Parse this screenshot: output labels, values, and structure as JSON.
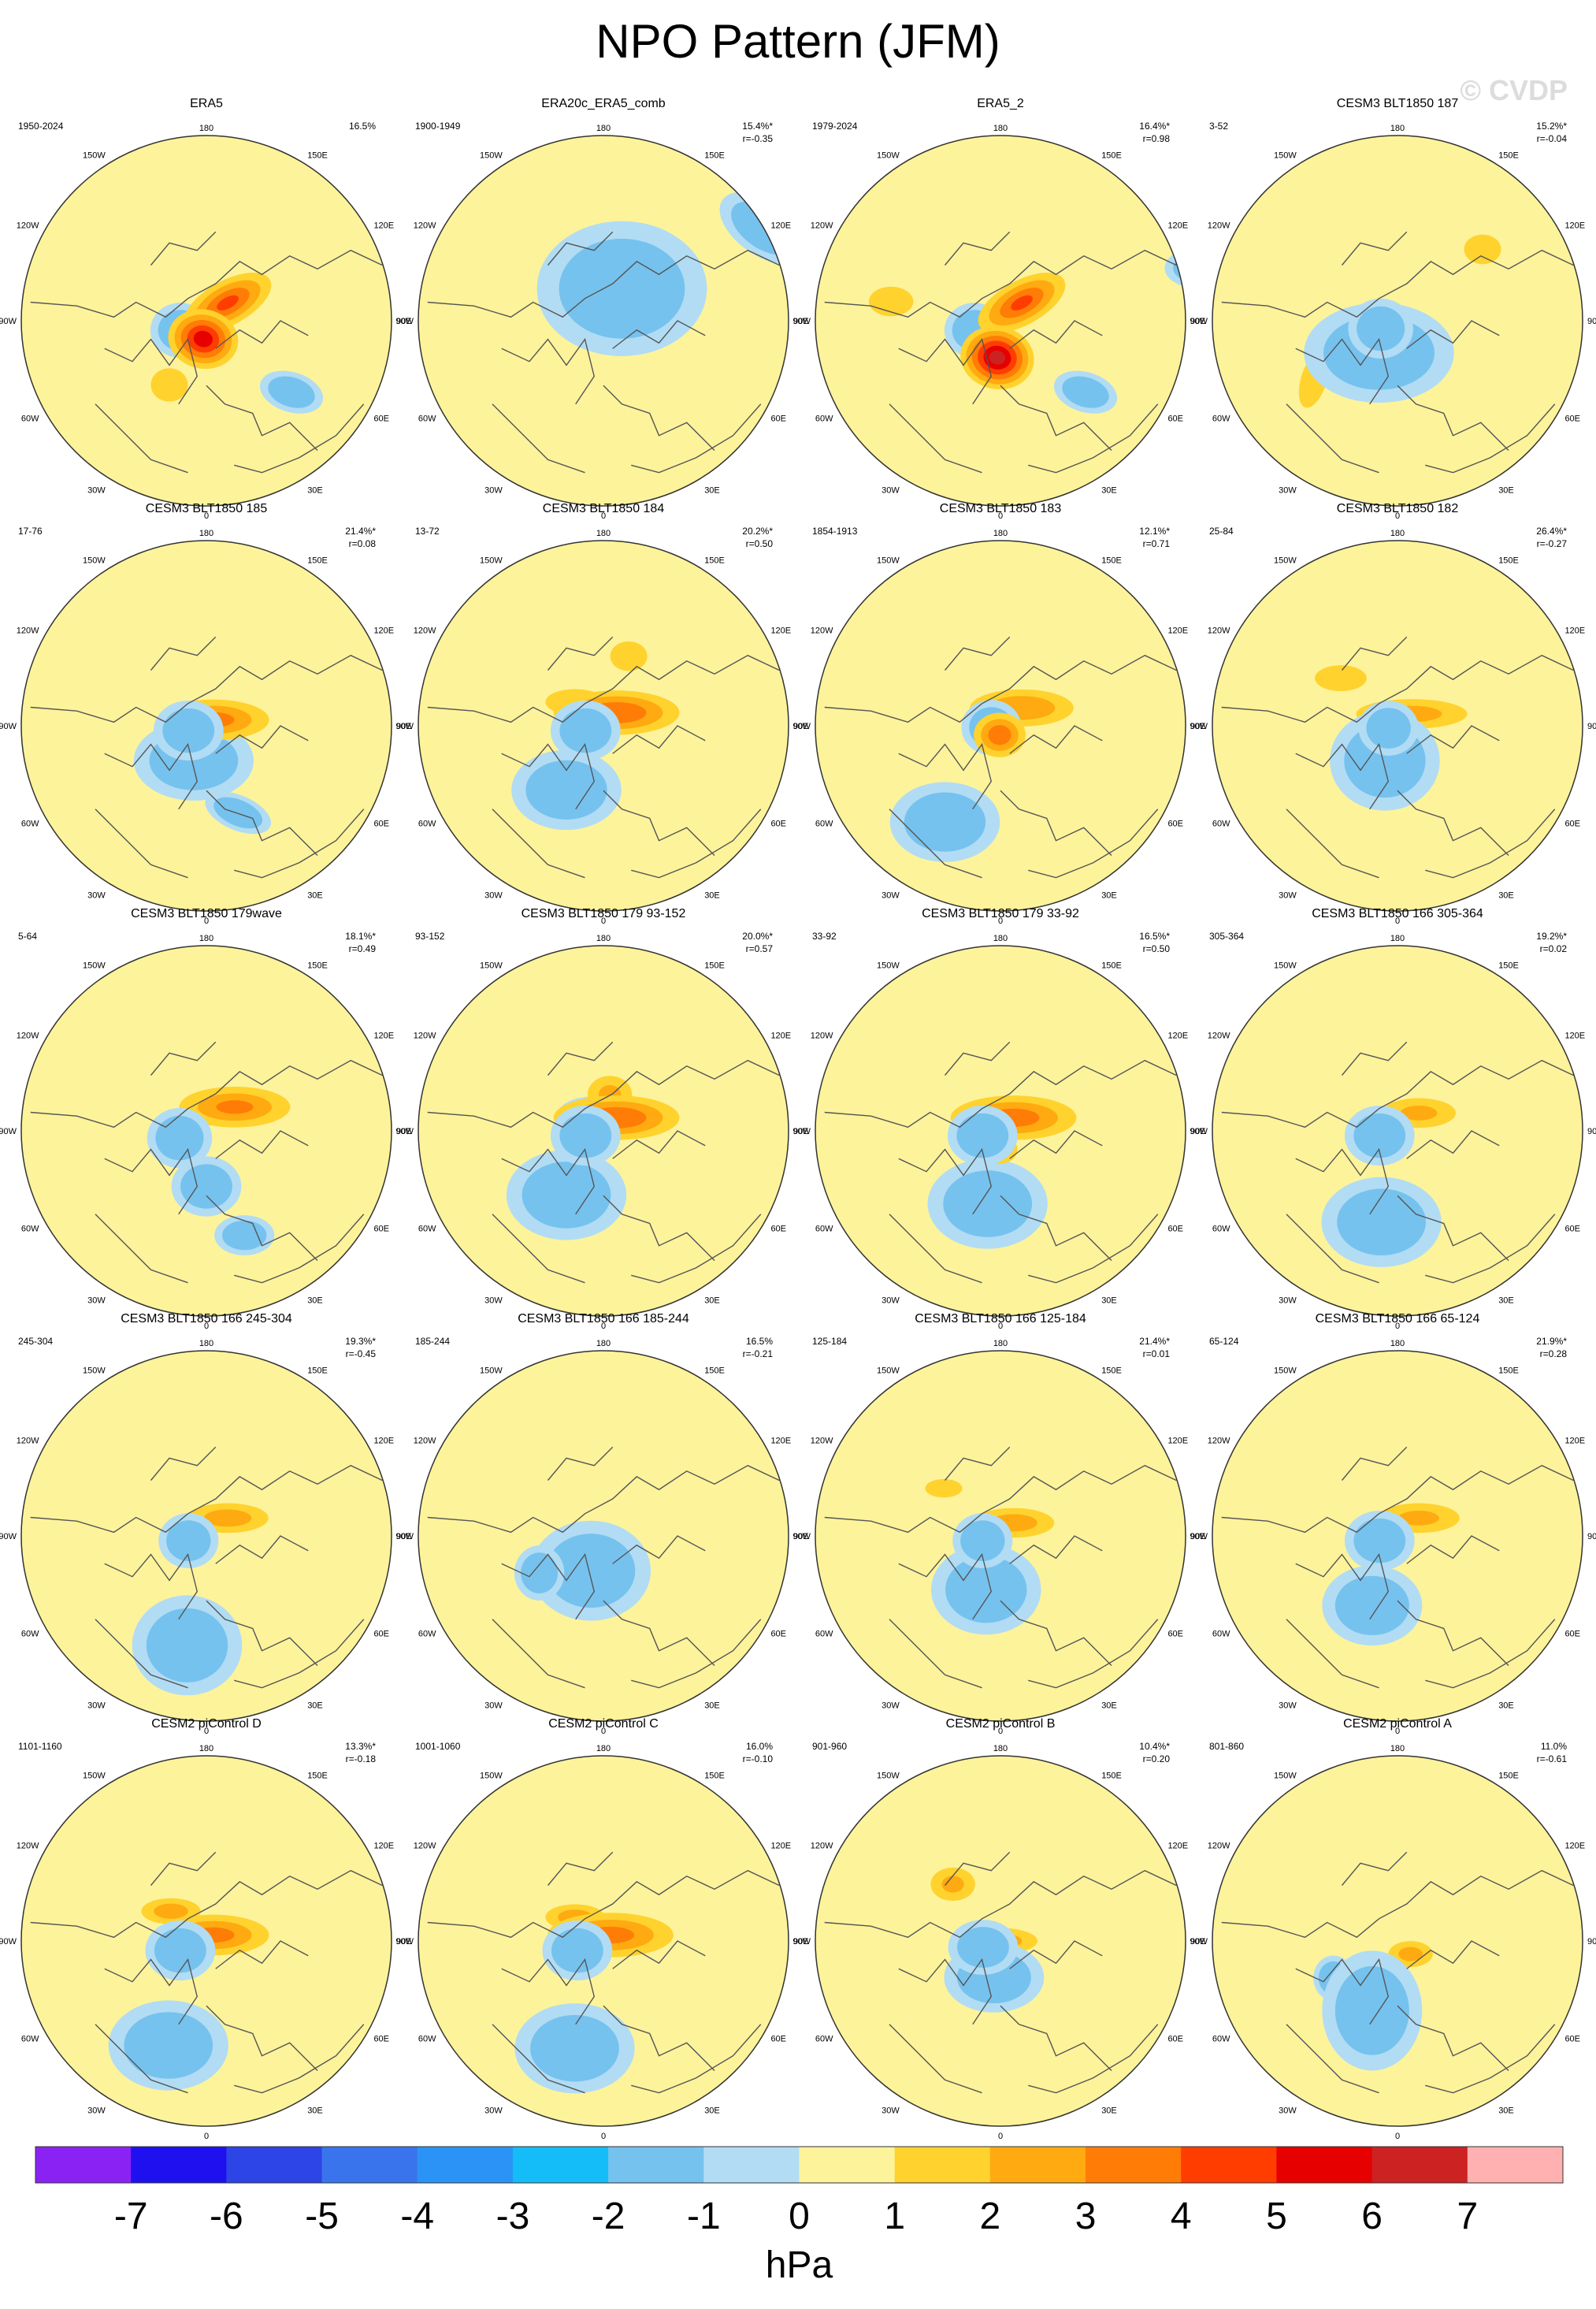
{
  "page": {
    "title": "NPO Pattern (JFM)",
    "watermark": "© CVDP"
  },
  "map_labels": {
    "top": "180",
    "bottom": "0",
    "upper_left": "150W",
    "upper_right": "150E",
    "left_upper": "120W",
    "right_upper": "120E",
    "left_mid": "90W",
    "right_mid": "90E",
    "left_lower": "60W",
    "right_lower": "60E",
    "lower_left": "30W",
    "lower_right": "30E"
  },
  "colorbar": {
    "unit": "hPa",
    "ticks": [
      "-7",
      "-6",
      "-5",
      "-4",
      "-3",
      "-2",
      "-1",
      "0",
      "1",
      "2",
      "3",
      "4",
      "5",
      "6",
      "7"
    ],
    "colors": [
      "#8b22f4",
      "#1f10f0",
      "#2d44e6",
      "#3a74ec",
      "#2a93f5",
      "#14bdf7",
      "#76c2ee",
      "#b1dcf4",
      "#fdf39b",
      "#ffd22e",
      "#ffaa10",
      "#ff7c06",
      "#ff3d00",
      "#e60000",
      "#cc2222",
      "#ffb0b0"
    ]
  },
  "chart_data": {
    "type": "map-grid",
    "panels": [
      {
        "name": "ERA5",
        "period": "1950-2024",
        "pct": "16.5%",
        "r": "",
        "blobs": [
          [
            40,
            15,
            0.26,
            0.12,
            4.0,
            -0.5
          ],
          [
            20,
            -15,
            0.12,
            0.11,
            -3.6,
            0
          ],
          [
            80,
            -10,
            0.19,
            0.16,
            5.5,
            0.2
          ],
          [
            140,
            -60,
            0.13,
            0.08,
            -2.0,
            0.3
          ],
          [
            10,
            120,
            0.15,
            0.09,
            -1.2,
            0
          ],
          [
            60,
            -40,
            0.1,
            0.09,
            1.8,
            0
          ]
        ]
      },
      {
        "name": "ERA20c_ERA5_comb",
        "period": "1900-1949",
        "pct": "15.4%*",
        "r": "r=-0.35",
        "blobs": [
          [
            60,
            20,
            0.34,
            0.27,
            -1.6,
            0
          ],
          [
            20,
            -150,
            0.15,
            0.1,
            -1.4,
            0
          ],
          [
            30,
            100,
            0.2,
            0.11,
            -1.2,
            0.6
          ]
        ]
      },
      {
        "name": "ERA5_2",
        "period": "1979-2024",
        "pct": "16.4%*",
        "r": "r=0.98",
        "blobs": [
          [
            40,
            15,
            0.26,
            0.12,
            4.0,
            -0.5
          ],
          [
            20,
            -15,
            0.12,
            0.11,
            -3.6,
            0
          ],
          [
            85,
            -20,
            0.2,
            0.17,
            6.4,
            0.2
          ],
          [
            140,
            -60,
            0.13,
            0.08,
            -2.0,
            0.3
          ],
          [
            15,
            110,
            0.13,
            0.08,
            -1.6,
            0
          ],
          [
            -10,
            -60,
            0.12,
            0.08,
            1.2,
            0
          ]
        ]
      },
      {
        "name": "CESM3 BLT1850 187",
        "period": "3-52",
        "pct": "15.2%*",
        "r": "r=-0.04",
        "blobs": [
          [
            25,
            -10,
            0.13,
            0.12,
            -3.4,
            0
          ],
          [
            60,
            -20,
            0.3,
            0.2,
            -1.8,
            0
          ],
          [
            35,
            -55,
            0.07,
            0.16,
            1.4,
            0.3
          ],
          [
            40,
            60,
            0.1,
            0.08,
            1.2,
            0
          ]
        ]
      },
      {
        "name": "CESM3 BLT1850 185",
        "period": "17-76",
        "pct": "21.4%*",
        "r": "r=0.08",
        "blobs": [
          [
            40,
            5,
            0.3,
            0.11,
            3.2,
            0
          ],
          [
            15,
            -10,
            0.14,
            0.12,
            -4.6,
            0
          ],
          [
            70,
            -20,
            0.24,
            0.16,
            -1.6,
            0
          ],
          [
            110,
            -50,
            0.14,
            0.07,
            -2.0,
            0.4
          ]
        ]
      },
      {
        "name": "CESM3 BLT1850 184",
        "period": "13-72",
        "pct": "20.2%*",
        "r": "r=0.50",
        "blobs": [
          [
            45,
            10,
            0.34,
            0.12,
            3.8,
            0
          ],
          [
            15,
            -10,
            0.14,
            0.12,
            -5.0,
            0
          ],
          [
            70,
            40,
            0.1,
            0.08,
            1.8,
            0
          ],
          [
            60,
            -40,
            0.22,
            0.16,
            -1.2,
            0
          ],
          [
            140,
            20,
            0.16,
            0.07,
            1.6,
            0
          ]
        ]
      },
      {
        "name": "CESM3 BLT1850 183",
        "period": "1854-1913",
        "pct": "12.1%*",
        "r": "r=0.71",
        "blobs": [
          [
            40,
            15,
            0.28,
            0.1,
            2.8,
            0
          ],
          [
            10,
            -5,
            0.12,
            0.11,
            -3.6,
            0
          ],
          [
            85,
            -5,
            0.14,
            0.12,
            3.6,
            0
          ],
          [
            60,
            -60,
            0.22,
            0.16,
            -1.2,
            0
          ]
        ]
      },
      {
        "name": "CESM3 BLT1850 182",
        "period": "25-84",
        "pct": "26.4%*",
        "r": "r=-0.27",
        "blobs": [
          [
            40,
            10,
            0.3,
            0.08,
            2.2,
            0
          ],
          [
            15,
            -5,
            0.12,
            0.11,
            -4.0,
            0
          ],
          [
            70,
            -20,
            0.22,
            0.2,
            -2.6,
            0
          ],
          [
            140,
            40,
            0.14,
            0.07,
            1.8,
            0
          ]
        ]
      },
      {
        "name": "CESM3 BLT1850 179wave",
        "period": "5-64",
        "pct": "18.1%*",
        "r": "r=0.49",
        "blobs": [
          [
            40,
            20,
            0.3,
            0.11,
            3.0,
            0
          ],
          [
            15,
            -15,
            0.13,
            0.12,
            -4.6,
            0
          ],
          [
            90,
            -30,
            0.14,
            0.12,
            -1.6,
            0
          ],
          [
            110,
            -60,
            0.12,
            0.08,
            -1.4,
            0
          ],
          [
            80,
            -120,
            0.1,
            0.08,
            2.0,
            0
          ]
        ]
      },
      {
        "name": "CESM3 BLT1850 179 93-152",
        "period": "93-152",
        "pct": "20.0%*",
        "r": "r=0.57",
        "blobs": [
          [
            45,
            10,
            0.34,
            0.12,
            3.8,
            0
          ],
          [
            15,
            -10,
            0.14,
            0.12,
            -4.6,
            0
          ],
          [
            80,
            20,
            0.12,
            0.1,
            2.0,
            0
          ],
          [
            60,
            -40,
            0.24,
            0.18,
            -1.2,
            0
          ],
          [
            130,
            10,
            0.14,
            0.08,
            -1.2,
            0
          ]
        ]
      },
      {
        "name": "CESM3 BLT1850 179 33-92",
        "period": "33-92",
        "pct": "16.5%*",
        "r": "r=0.50",
        "blobs": [
          [
            45,
            10,
            0.34,
            0.12,
            3.4,
            0
          ],
          [
            15,
            -10,
            0.14,
            0.12,
            -4.6,
            0
          ],
          [
            85,
            -10,
            0.1,
            0.08,
            2.0,
            0
          ],
          [
            80,
            -40,
            0.24,
            0.18,
            -1.4,
            0
          ]
        ]
      },
      {
        "name": "CESM3 BLT1850 166 305-364",
        "period": "305-364",
        "pct": "19.2%*",
        "r": "r=0.02",
        "blobs": [
          [
            40,
            15,
            0.2,
            0.08,
            2.0,
            0
          ],
          [
            15,
            -10,
            0.14,
            0.12,
            -4.6,
            0
          ],
          [
            80,
            -50,
            0.24,
            0.18,
            -2.0,
            0
          ]
        ]
      },
      {
        "name": "CESM3 BLT1850 166 245-304",
        "period": "245-304",
        "pct": "19.3%*",
        "r": "r=-0.45",
        "blobs": [
          [
            40,
            15,
            0.22,
            0.08,
            2.4,
            0
          ],
          [
            15,
            -10,
            0.12,
            0.11,
            -4.6,
            0
          ],
          [
            80,
            -60,
            0.22,
            0.2,
            -1.4,
            0
          ]
        ]
      },
      {
        "name": "CESM3 BLT1850 166 185-244",
        "period": "185-244",
        "pct": "16.5%",
        "r": "r=-0.21",
        "blobs": [
          [
            30,
            -40,
            0.1,
            0.11,
            -3.0,
            0
          ],
          [
            70,
            -20,
            0.24,
            0.2,
            -2.4,
            0
          ],
          [
            40,
            -130,
            0.08,
            0.1,
            2.2,
            0.4
          ]
        ]
      },
      {
        "name": "CESM3 BLT1850 166 125-184",
        "period": "125-184",
        "pct": "21.4%*",
        "r": "r=0.01",
        "blobs": [
          [
            45,
            10,
            0.22,
            0.08,
            2.4,
            0
          ],
          [
            15,
            -10,
            0.12,
            0.11,
            -4.6,
            0
          ],
          [
            75,
            -30,
            0.22,
            0.18,
            -2.0,
            0
          ],
          [
            140,
            40,
            0.1,
            0.05,
            1.6,
            0
          ]
        ]
      },
      {
        "name": "CESM3 BLT1850 166 65-124",
        "period": "65-124",
        "pct": "21.9%*",
        "r": "r=0.28",
        "blobs": [
          [
            40,
            15,
            0.22,
            0.08,
            2.0,
            0
          ],
          [
            15,
            -10,
            0.14,
            0.12,
            -4.6,
            0
          ],
          [
            70,
            -40,
            0.2,
            0.16,
            -1.4,
            0
          ]
        ]
      },
      {
        "name": "CESM2 piControl D",
        "period": "1101-1160",
        "pct": "13.3%*",
        "r": "r=-0.18",
        "blobs": [
          [
            40,
            5,
            0.3,
            0.11,
            3.2,
            0
          ],
          [
            20,
            -15,
            0.14,
            0.12,
            -4.0,
            0
          ],
          [
            70,
            -60,
            0.24,
            0.18,
            -3.0,
            0
          ],
          [
            140,
            25,
            0.16,
            0.07,
            2.4,
            0
          ]
        ]
      },
      {
        "name": "CESM2 piControl C",
        "period": "1001-1060",
        "pct": "16.0%",
        "r": "r=-0.10",
        "blobs": [
          [
            40,
            5,
            0.34,
            0.12,
            3.2,
            0
          ],
          [
            20,
            -15,
            0.14,
            0.12,
            -3.8,
            0
          ],
          [
            75,
            -60,
            0.24,
            0.18,
            -3.0,
            0
          ],
          [
            140,
            20,
            0.16,
            0.07,
            2.4,
            0
          ]
        ]
      },
      {
        "name": "CESM2 piControl B",
        "period": "901-960",
        "pct": "10.4%*",
        "r": "r=0.20",
        "blobs": [
          [
            40,
            0,
            0.2,
            0.07,
            2.4,
            0
          ],
          [
            20,
            -10,
            0.14,
            0.11,
            -3.6,
            0
          ],
          [
            80,
            -20,
            0.2,
            0.14,
            -2.8,
            0
          ],
          [
            130,
            40,
            0.12,
            0.09,
            2.0,
            0
          ],
          [
            90,
            -120,
            0.1,
            0.07,
            -2.0,
            0
          ]
        ]
      },
      {
        "name": "CESM2 piControl A",
        "period": "801-860",
        "pct": "11.0%",
        "r": "r=-0.61",
        "blobs": [
          [
            30,
            -40,
            0.08,
            0.09,
            -2.8,
            0
          ],
          [
            70,
            -40,
            0.2,
            0.24,
            -3.6,
            0
          ],
          [
            50,
            -120,
            0.1,
            0.08,
            1.8,
            0.3
          ],
          [
            135,
            -10,
            0.12,
            0.07,
            2.2,
            0
          ]
        ]
      }
    ]
  }
}
